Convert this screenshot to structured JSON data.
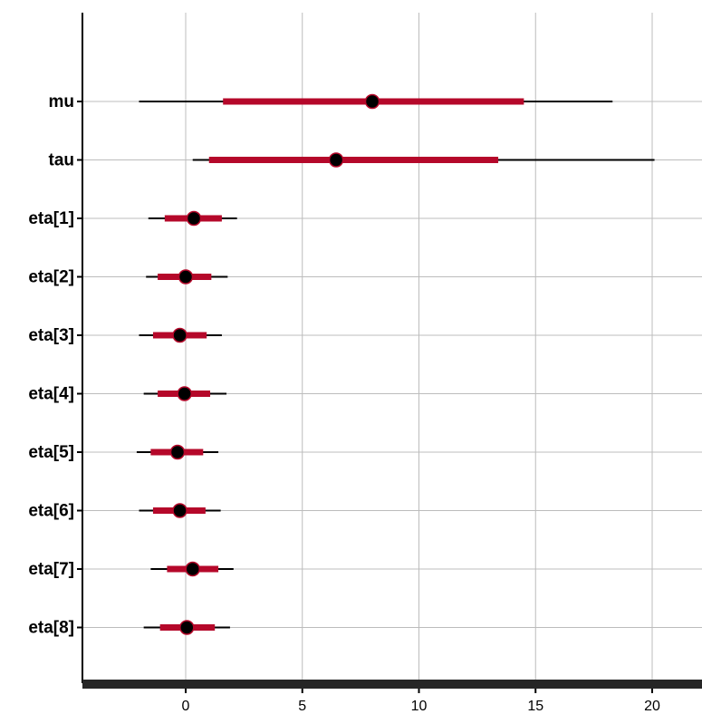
{
  "chart_data": {
    "type": "forest",
    "title": "",
    "xlabel": "",
    "ylabel": "",
    "xlim": [
      -4.5,
      22
    ],
    "x_ticks": [
      0,
      5,
      10,
      15,
      20
    ],
    "x_tick_labels": [
      "0",
      "5",
      "10",
      "15",
      "20"
    ],
    "grid": true,
    "colors": {
      "inner_interval": "#b5082a",
      "outer_interval": "#000000",
      "point_fill": "#000000",
      "point_stroke": "#b5082a",
      "grid": "#bcbcbc",
      "axis_bar": "#262626"
    },
    "parameters": [
      {
        "label": "mu",
        "median": 8.0,
        "inner": [
          1.6,
          14.5
        ],
        "outer": [
          -2.0,
          18.3
        ]
      },
      {
        "label": "tau",
        "median": 6.45,
        "inner": [
          1.0,
          13.4
        ],
        "outer": [
          0.3,
          20.1
        ]
      },
      {
        "label": "eta[1]",
        "median": 0.35,
        "inner": [
          -0.9,
          1.55
        ],
        "outer": [
          -1.6,
          2.2
        ]
      },
      {
        "label": "eta[2]",
        "median": 0.0,
        "inner": [
          -1.2,
          1.1
        ],
        "outer": [
          -1.7,
          1.8
        ]
      },
      {
        "label": "eta[3]",
        "median": -0.25,
        "inner": [
          -1.4,
          0.9
        ],
        "outer": [
          -2.0,
          1.55
        ]
      },
      {
        "label": "eta[4]",
        "median": -0.05,
        "inner": [
          -1.2,
          1.05
        ],
        "outer": [
          -1.8,
          1.75
        ]
      },
      {
        "label": "eta[5]",
        "median": -0.35,
        "inner": [
          -1.5,
          0.75
        ],
        "outer": [
          -2.1,
          1.4
        ]
      },
      {
        "label": "eta[6]",
        "median": -0.25,
        "inner": [
          -1.4,
          0.85
        ],
        "outer": [
          -2.0,
          1.5
        ]
      },
      {
        "label": "eta[7]",
        "median": 0.3,
        "inner": [
          -0.8,
          1.4
        ],
        "outer": [
          -1.5,
          2.05
        ]
      },
      {
        "label": "eta[8]",
        "median": 0.05,
        "inner": [
          -1.1,
          1.25
        ],
        "outer": [
          -1.8,
          1.9
        ]
      }
    ]
  }
}
